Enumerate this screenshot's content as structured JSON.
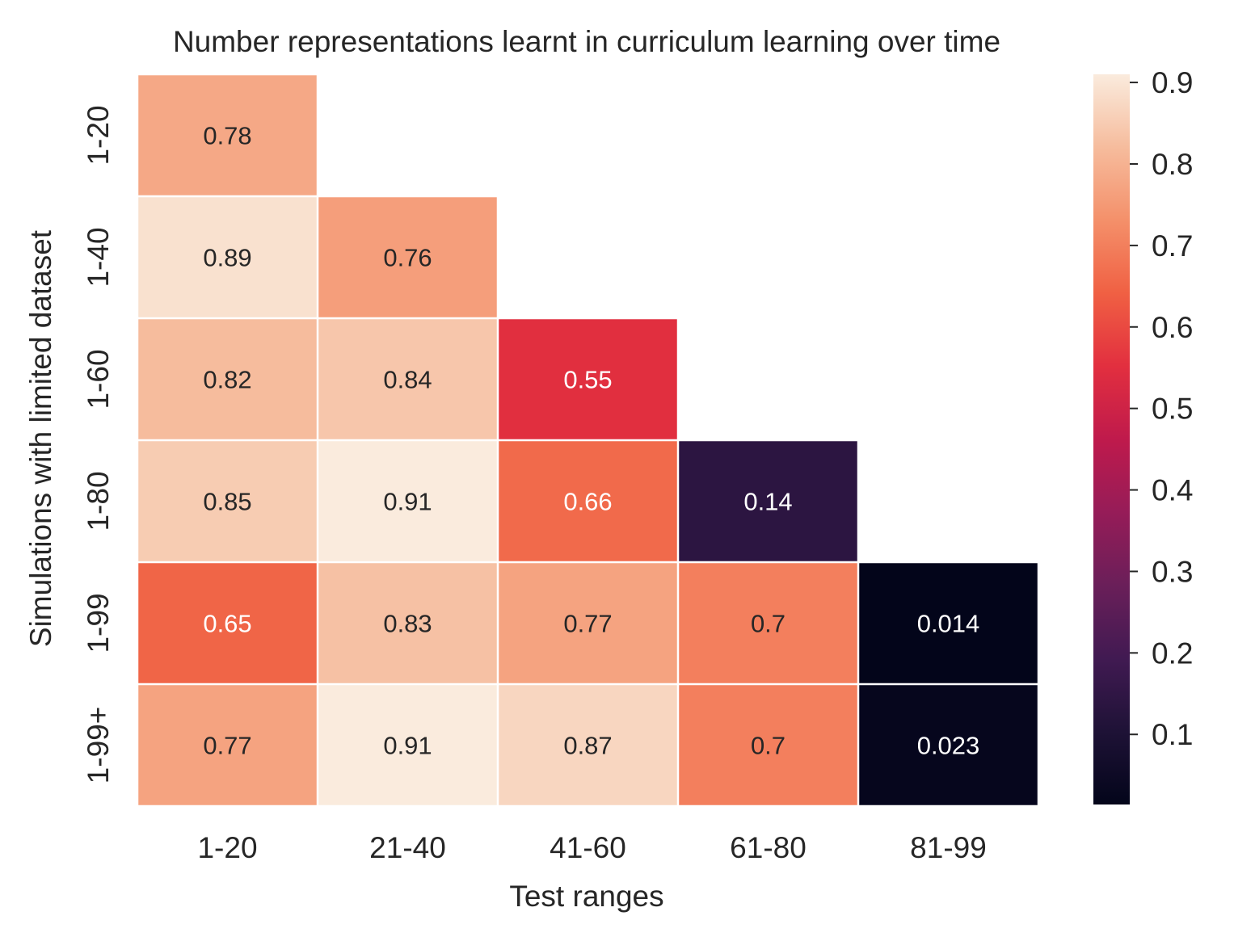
{
  "chart_data": {
    "type": "heatmap",
    "title": "Number representations learnt in curriculum learning over time",
    "xlabel": "Test ranges",
    "ylabel": "Simulations with limited dataset",
    "x_categories": [
      "1-20",
      "21-40",
      "41-60",
      "61-80",
      "81-99"
    ],
    "y_categories": [
      "1-20",
      "1-40",
      "1-60",
      "1-80",
      "1-99",
      "1-99+"
    ],
    "values": [
      [
        0.78,
        null,
        null,
        null,
        null
      ],
      [
        0.89,
        0.76,
        null,
        null,
        null
      ],
      [
        0.82,
        0.84,
        0.55,
        null,
        null
      ],
      [
        0.85,
        0.91,
        0.66,
        0.14,
        null
      ],
      [
        0.65,
        0.83,
        0.77,
        0.7,
        0.014
      ],
      [
        0.77,
        0.91,
        0.87,
        0.7,
        0.023
      ]
    ],
    "value_labels": [
      [
        "0.78",
        "",
        "",
        "",
        ""
      ],
      [
        "0.89",
        "0.76",
        "",
        "",
        ""
      ],
      [
        "0.82",
        "0.84",
        "0.55",
        "",
        ""
      ],
      [
        "0.85",
        "0.91",
        "0.66",
        "0.14",
        ""
      ],
      [
        "0.65",
        "0.83",
        "0.77",
        "0.7",
        "0.014"
      ],
      [
        "0.77",
        "0.91",
        "0.87",
        "0.7",
        "0.023"
      ]
    ],
    "colorbar": {
      "min": 0.014,
      "max": 0.91,
      "ticks": [
        0.1,
        0.2,
        0.3,
        0.4,
        0.5,
        0.6,
        0.7,
        0.8,
        0.9
      ],
      "tick_labels": [
        "0.1",
        "0.2",
        "0.3",
        "0.4",
        "0.5",
        "0.6",
        "0.7",
        "0.8",
        "0.9"
      ],
      "colormap": "rocket"
    },
    "grid": false
  }
}
